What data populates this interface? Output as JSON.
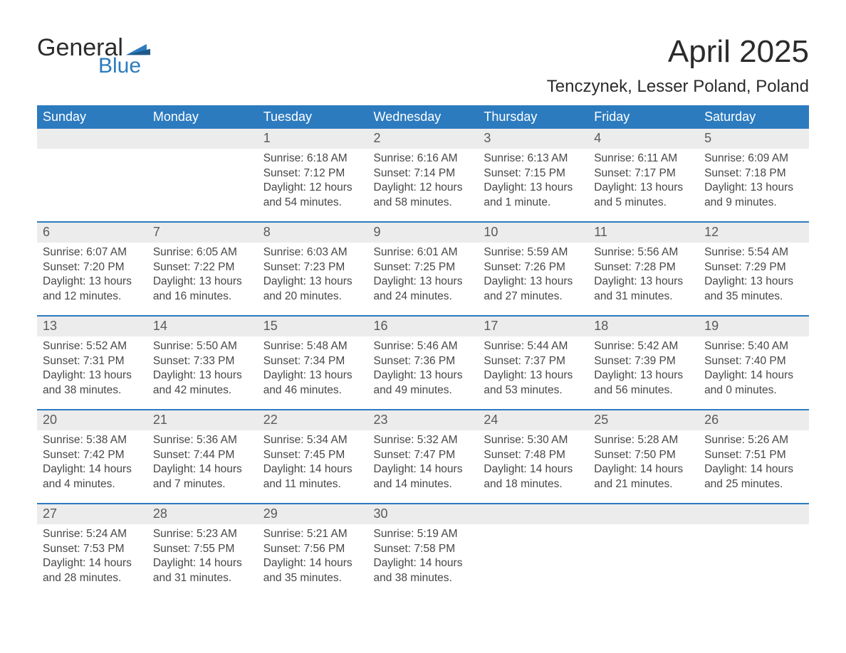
{
  "logo": {
    "word1": "General",
    "word2": "Blue"
  },
  "title": "April 2025",
  "subtitle": "Tenczynek, Lesser Poland, Poland",
  "colors": {
    "header_bg": "#2c7bbf",
    "header_fg": "#ffffff",
    "daynum_bg": "#ececec",
    "daynum_fg": "#5a5a5a",
    "row_rule": "#2c7bbf",
    "body_fg": "#474747",
    "page_bg": "#ffffff",
    "logo_blue": "#2c7bbf",
    "logo_dark": "#2b2b2b"
  },
  "columns": [
    "Sunday",
    "Monday",
    "Tuesday",
    "Wednesday",
    "Thursday",
    "Friday",
    "Saturday"
  ],
  "labels": {
    "sunrise": "Sunrise:",
    "sunset": "Sunset:",
    "daylight": "Daylight:"
  },
  "weeks": [
    [
      null,
      null,
      {
        "n": "1",
        "sunrise": "6:18 AM",
        "sunset": "7:12 PM",
        "daylight": "12 hours and 54 minutes."
      },
      {
        "n": "2",
        "sunrise": "6:16 AM",
        "sunset": "7:14 PM",
        "daylight": "12 hours and 58 minutes."
      },
      {
        "n": "3",
        "sunrise": "6:13 AM",
        "sunset": "7:15 PM",
        "daylight": "13 hours and 1 minute."
      },
      {
        "n": "4",
        "sunrise": "6:11 AM",
        "sunset": "7:17 PM",
        "daylight": "13 hours and 5 minutes."
      },
      {
        "n": "5",
        "sunrise": "6:09 AM",
        "sunset": "7:18 PM",
        "daylight": "13 hours and 9 minutes."
      }
    ],
    [
      {
        "n": "6",
        "sunrise": "6:07 AM",
        "sunset": "7:20 PM",
        "daylight": "13 hours and 12 minutes."
      },
      {
        "n": "7",
        "sunrise": "6:05 AM",
        "sunset": "7:22 PM",
        "daylight": "13 hours and 16 minutes."
      },
      {
        "n": "8",
        "sunrise": "6:03 AM",
        "sunset": "7:23 PM",
        "daylight": "13 hours and 20 minutes."
      },
      {
        "n": "9",
        "sunrise": "6:01 AM",
        "sunset": "7:25 PM",
        "daylight": "13 hours and 24 minutes."
      },
      {
        "n": "10",
        "sunrise": "5:59 AM",
        "sunset": "7:26 PM",
        "daylight": "13 hours and 27 minutes."
      },
      {
        "n": "11",
        "sunrise": "5:56 AM",
        "sunset": "7:28 PM",
        "daylight": "13 hours and 31 minutes."
      },
      {
        "n": "12",
        "sunrise": "5:54 AM",
        "sunset": "7:29 PM",
        "daylight": "13 hours and 35 minutes."
      }
    ],
    [
      {
        "n": "13",
        "sunrise": "5:52 AM",
        "sunset": "7:31 PM",
        "daylight": "13 hours and 38 minutes."
      },
      {
        "n": "14",
        "sunrise": "5:50 AM",
        "sunset": "7:33 PM",
        "daylight": "13 hours and 42 minutes."
      },
      {
        "n": "15",
        "sunrise": "5:48 AM",
        "sunset": "7:34 PM",
        "daylight": "13 hours and 46 minutes."
      },
      {
        "n": "16",
        "sunrise": "5:46 AM",
        "sunset": "7:36 PM",
        "daylight": "13 hours and 49 minutes."
      },
      {
        "n": "17",
        "sunrise": "5:44 AM",
        "sunset": "7:37 PM",
        "daylight": "13 hours and 53 minutes."
      },
      {
        "n": "18",
        "sunrise": "5:42 AM",
        "sunset": "7:39 PM",
        "daylight": "13 hours and 56 minutes."
      },
      {
        "n": "19",
        "sunrise": "5:40 AM",
        "sunset": "7:40 PM",
        "daylight": "14 hours and 0 minutes."
      }
    ],
    [
      {
        "n": "20",
        "sunrise": "5:38 AM",
        "sunset": "7:42 PM",
        "daylight": "14 hours and 4 minutes."
      },
      {
        "n": "21",
        "sunrise": "5:36 AM",
        "sunset": "7:44 PM",
        "daylight": "14 hours and 7 minutes."
      },
      {
        "n": "22",
        "sunrise": "5:34 AM",
        "sunset": "7:45 PM",
        "daylight": "14 hours and 11 minutes."
      },
      {
        "n": "23",
        "sunrise": "5:32 AM",
        "sunset": "7:47 PM",
        "daylight": "14 hours and 14 minutes."
      },
      {
        "n": "24",
        "sunrise": "5:30 AM",
        "sunset": "7:48 PM",
        "daylight": "14 hours and 18 minutes."
      },
      {
        "n": "25",
        "sunrise": "5:28 AM",
        "sunset": "7:50 PM",
        "daylight": "14 hours and 21 minutes."
      },
      {
        "n": "26",
        "sunrise": "5:26 AM",
        "sunset": "7:51 PM",
        "daylight": "14 hours and 25 minutes."
      }
    ],
    [
      {
        "n": "27",
        "sunrise": "5:24 AM",
        "sunset": "7:53 PM",
        "daylight": "14 hours and 28 minutes."
      },
      {
        "n": "28",
        "sunrise": "5:23 AM",
        "sunset": "7:55 PM",
        "daylight": "14 hours and 31 minutes."
      },
      {
        "n": "29",
        "sunrise": "5:21 AM",
        "sunset": "7:56 PM",
        "daylight": "14 hours and 35 minutes."
      },
      {
        "n": "30",
        "sunrise": "5:19 AM",
        "sunset": "7:58 PM",
        "daylight": "14 hours and 38 minutes."
      },
      null,
      null,
      null
    ]
  ]
}
